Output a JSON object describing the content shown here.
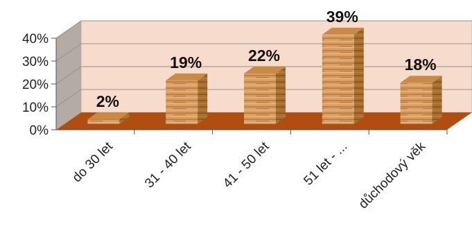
{
  "chart_data": {
    "type": "bar",
    "categories": [
      "do 30 let",
      "31 - 40 let",
      "41 - 50 let",
      "51 let - ...",
      "důchodový věk"
    ],
    "values": [
      2,
      19,
      22,
      39,
      18
    ],
    "data_labels": [
      "2%",
      "19%",
      "22%",
      "39%",
      "18%"
    ],
    "y_ticks": [
      "0%",
      "10%",
      "20%",
      "30%",
      "40%"
    ],
    "ylim": [
      0,
      40
    ],
    "grid": true,
    "legend": "none",
    "colors": {
      "wall": "#f7dccd",
      "side_wall": "#b5aba5",
      "floor": "#b04e12",
      "bar_front": "#d9a066",
      "bar_side": "#a8702f",
      "bar_top": "#c98a46"
    }
  }
}
